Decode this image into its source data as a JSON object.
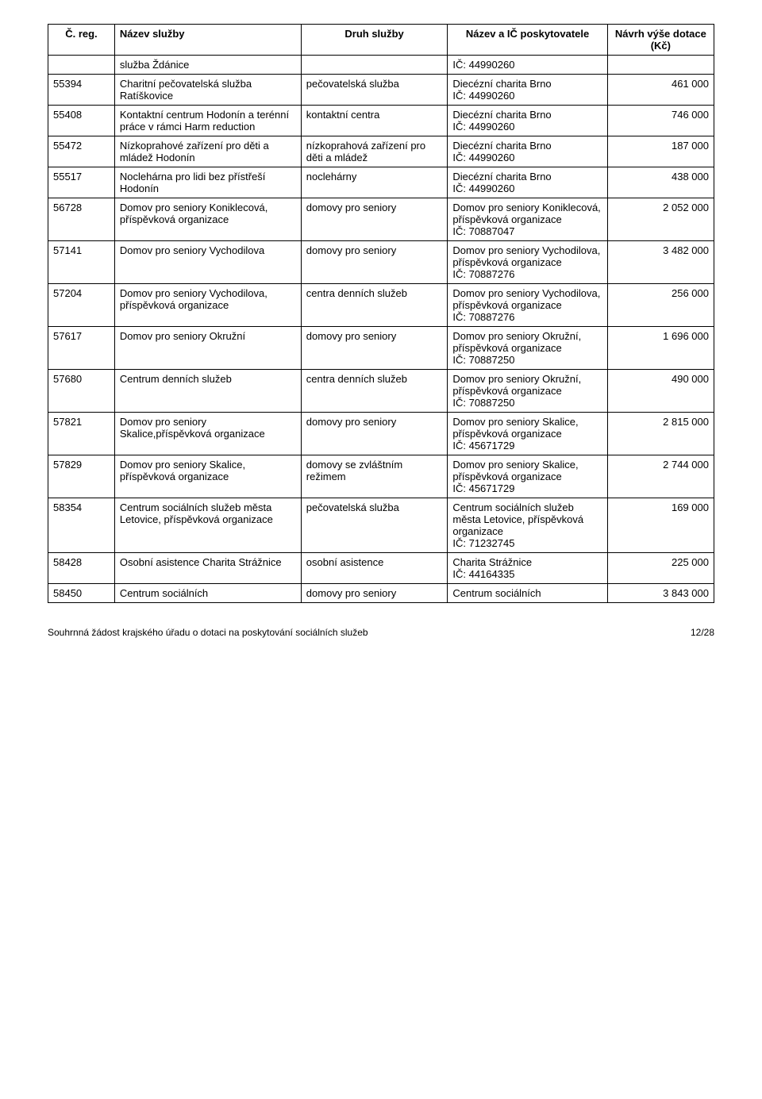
{
  "columns": {
    "c1": "Č. reg.",
    "c2": "Název služby",
    "c3": "Druh služby",
    "c4": "Název a IČ poskytovatele",
    "c5": "Návrh výše dotace (Kč)"
  },
  "rows": [
    {
      "reg": "",
      "nazev": "služba Ždánice",
      "druh": "",
      "poskytovatel": "IČ: 44990260",
      "dotace": ""
    },
    {
      "reg": "55394",
      "nazev": "Charitní pečovatelská služba Ratíškovice",
      "druh": "pečovatelská služba",
      "poskytovatel": "Diecézní charita Brno\nIČ: 44990260",
      "dotace": "461 000"
    },
    {
      "reg": "55408",
      "nazev": "Kontaktní centrum Hodonín a terénní práce v rámci Harm reduction",
      "druh": "kontaktní centra",
      "poskytovatel": "Diecézní charita Brno\nIČ: 44990260",
      "dotace": "746 000"
    },
    {
      "reg": "55472",
      "nazev": "Nízkoprahové zařízení pro děti a mládež Hodonín",
      "druh": "nízkoprahová zařízení pro děti a mládež",
      "poskytovatel": "Diecézní charita Brno\nIČ: 44990260",
      "dotace": "187 000"
    },
    {
      "reg": "55517",
      "nazev": "Noclehárna pro lidi bez přístřeší Hodonín",
      "druh": "noclehárny",
      "poskytovatel": "Diecézní charita Brno\nIČ: 44990260",
      "dotace": "438 000"
    },
    {
      "reg": "56728",
      "nazev": "Domov pro seniory Koniklecová, příspěvková organizace",
      "druh": "domovy pro seniory",
      "poskytovatel": "Domov pro seniory Koniklecová, příspěvková organizace\nIČ: 70887047",
      "dotace": "2 052 000"
    },
    {
      "reg": "57141",
      "nazev": "Domov pro seniory Vychodilova",
      "druh": "domovy pro seniory",
      "poskytovatel": "Domov pro seniory Vychodilova, příspěvková organizace\nIČ: 70887276",
      "dotace": "3 482 000"
    },
    {
      "reg": "57204",
      "nazev": "Domov pro seniory Vychodilova, příspěvková organizace",
      "druh": "centra denních služeb",
      "poskytovatel": "Domov pro seniory Vychodilova, příspěvková organizace\nIČ: 70887276",
      "dotace": "256 000"
    },
    {
      "reg": "57617",
      "nazev": "Domov pro seniory Okružní",
      "druh": "domovy pro seniory",
      "poskytovatel": "Domov pro seniory Okružní, příspěvková organizace\nIČ: 70887250",
      "dotace": "1 696 000"
    },
    {
      "reg": "57680",
      "nazev": "Centrum denních služeb",
      "druh": "centra denních služeb",
      "poskytovatel": "Domov pro seniory Okružní, příspěvková organizace\nIČ: 70887250",
      "dotace": "490 000"
    },
    {
      "reg": "57821",
      "nazev": "Domov pro seniory Skalice,příspěvková organizace",
      "druh": "domovy pro seniory",
      "poskytovatel": "Domov pro seniory Skalice, příspěvková organizace\nIČ: 45671729",
      "dotace": "2 815 000"
    },
    {
      "reg": "57829",
      "nazev": "Domov pro seniory Skalice, příspěvková organizace",
      "druh": "domovy se zvláštním režimem",
      "poskytovatel": "Domov pro seniory Skalice, příspěvková organizace\nIČ: 45671729",
      "dotace": "2 744 000"
    },
    {
      "reg": "58354",
      "nazev": "Centrum sociálních služeb města Letovice, příspěvková organizace",
      "druh": "pečovatelská služba",
      "poskytovatel": "Centrum sociálních služeb města Letovice, příspěvková organizace\nIČ: 71232745",
      "dotace": "169 000"
    },
    {
      "reg": "58428",
      "nazev": "Osobní asistence Charita Strážnice",
      "druh": "osobní asistence",
      "poskytovatel": "Charita Strážnice\nIČ: 44164335",
      "dotace": "225 000"
    },
    {
      "reg": "58450",
      "nazev": "Centrum sociálních",
      "druh": "domovy pro seniory",
      "poskytovatel": "Centrum sociálních",
      "dotace": "3 843 000"
    }
  ],
  "footer": {
    "left": "Souhrnná žádost krajského úřadu o dotaci na poskytování sociálních služeb",
    "right": "12/28"
  }
}
